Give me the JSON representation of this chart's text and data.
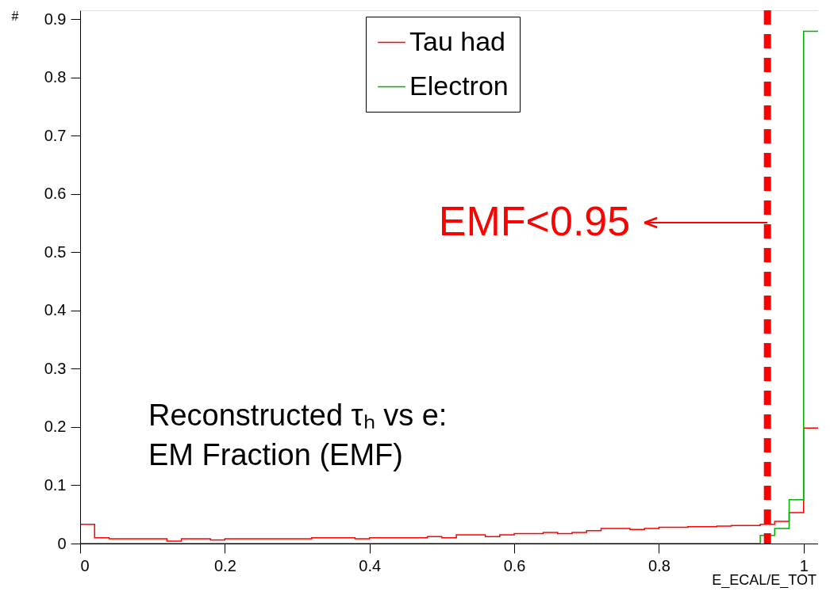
{
  "chart_data": {
    "type": "histogram",
    "ylabel": "#",
    "xlabel": "E_ECAL/E_TOT",
    "bins": [
      0,
      0.02,
      0.04,
      0.06,
      0.08,
      0.1,
      0.12,
      0.14,
      0.16,
      0.18,
      0.2,
      0.22,
      0.24,
      0.26,
      0.28,
      0.3,
      0.32,
      0.34,
      0.36,
      0.38,
      0.4,
      0.42,
      0.44,
      0.46,
      0.48,
      0.5,
      0.52,
      0.54,
      0.56,
      0.58,
      0.6,
      0.62,
      0.64,
      0.66,
      0.68,
      0.7,
      0.72,
      0.74,
      0.76,
      0.78,
      0.8,
      0.82,
      0.84,
      0.86,
      0.88,
      0.9,
      0.92,
      0.94,
      0.96,
      0.98,
      1.0,
      1.02
    ],
    "series": [
      {
        "name": "Tau had",
        "color": "#ff0000",
        "values": [
          0.033,
          0.01,
          0.008,
          0.008,
          0.008,
          0.008,
          0.004,
          0.008,
          0.008,
          0.006,
          0.008,
          0.008,
          0.008,
          0.008,
          0.008,
          0.008,
          0.01,
          0.01,
          0.01,
          0.008,
          0.01,
          0.01,
          0.01,
          0.01,
          0.012,
          0.01,
          0.015,
          0.015,
          0.012,
          0.015,
          0.017,
          0.017,
          0.019,
          0.017,
          0.019,
          0.022,
          0.026,
          0.026,
          0.024,
          0.026,
          0.028,
          0.028,
          0.029,
          0.029,
          0.03,
          0.031,
          0.031,
          0.033,
          0.038,
          0.053,
          0.198
        ]
      },
      {
        "name": "Electron",
        "color": "#00b000",
        "values": [
          0,
          0,
          0,
          0,
          0,
          0,
          0,
          0,
          0,
          0,
          0,
          0,
          0,
          0,
          0,
          0,
          0,
          0,
          0,
          0,
          0,
          0,
          0,
          0,
          0,
          0,
          0,
          0,
          0,
          0,
          0,
          0,
          0,
          0,
          0,
          0,
          0,
          0,
          0,
          0,
          0,
          0,
          0,
          0,
          0,
          0,
          0,
          0.014,
          0.026,
          0.075,
          0.879
        ]
      }
    ],
    "xlim": [
      0,
      1.02
    ],
    "xticks": [
      0,
      0.2,
      0.4,
      0.6,
      0.8,
      1
    ],
    "ylim": [
      0,
      0.915
    ],
    "yticks": [
      0,
      0.1,
      0.2,
      0.3,
      0.4,
      0.5,
      0.6,
      0.7,
      0.8,
      0.9
    ],
    "grid": false,
    "legend": "top",
    "ref_lines": [
      {
        "axis": "x",
        "value": 0.95,
        "color": "#ff0000",
        "line_style": "dashed"
      }
    ],
    "annotations": [
      "EMF<0.95",
      "Reconstructed τₕ vs e:",
      "EM Fraction (EMF)"
    ]
  }
}
